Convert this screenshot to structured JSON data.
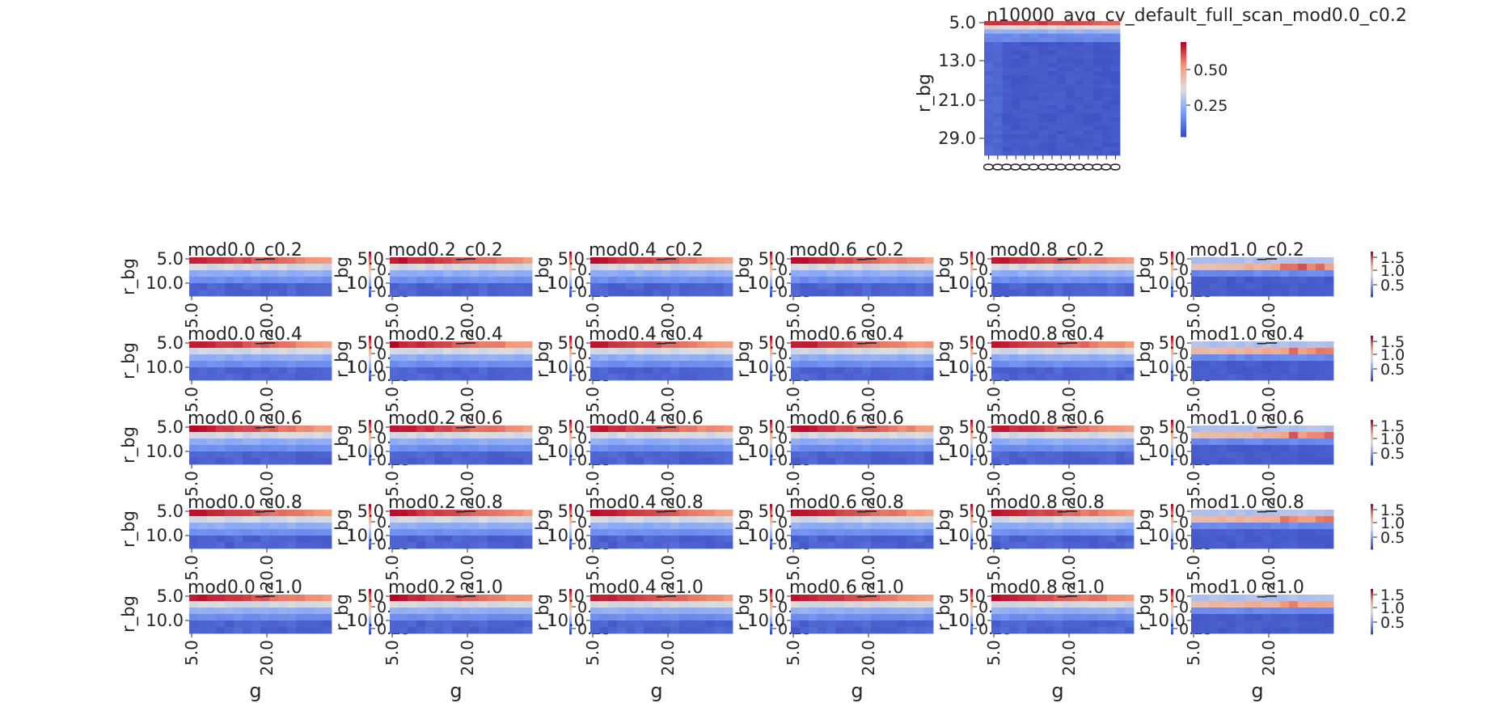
{
  "figure": {
    "colormap": "coolwarm",
    "background": "#ffffff",
    "text_color": "#262626"
  },
  "chart_data": [
    {
      "type": "heatmap",
      "title": "n10000_avg_cv_default_full_scan_mod0.0_c0.2",
      "xlabel": "",
      "ylabel": "r_bg",
      "y_ticklabels": [
        "5.0",
        "13.0",
        "21.0",
        "29.0"
      ],
      "x_ticklabels": [
        "0",
        "0",
        "0",
        "0",
        "0",
        "0",
        "0",
        "0",
        "0",
        "0",
        "0",
        "0",
        "0",
        "0",
        "0"
      ],
      "colorbar_ticklabels": [
        "0.50",
        "0.25"
      ],
      "value_range": [
        0.08,
        0.72
      ],
      "rows": 32,
      "cols": 15,
      "pattern": "top row hot (red), rapidly cooling to uniform blue below"
    },
    {
      "type": "heatmap_grid",
      "rows_c": [
        "c0.2",
        "c0.4",
        "c0.6",
        "c0.8",
        "c1.0"
      ],
      "cols_mod": [
        "mod0.0",
        "mod0.2",
        "mod0.4",
        "mod0.6",
        "mod0.8",
        "mod1.0"
      ],
      "titles": [
        [
          "mod0.0_c0.2",
          "mod0.2_c0.2",
          "mod0.4_c0.2",
          "mod0.6_c0.2",
          "mod0.8_c0.2",
          "mod1.0_c0.2"
        ],
        [
          "mod0.0_c0.4",
          "mod0.2_c0.4",
          "mod0.4_c0.4",
          "mod0.6_c0.4",
          "mod0.8_c0.4",
          "mod1.0_c0.4"
        ],
        [
          "mod0.0_c0.6",
          "mod0.2_c0.6",
          "mod0.4_c0.6",
          "mod0.6_c0.6",
          "mod0.8_c0.6",
          "mod1.0_c0.6"
        ],
        [
          "mod0.0_c0.8",
          "mod0.2_c0.8",
          "mod0.4_c0.8",
          "mod0.6_c0.8",
          "mod0.8_c0.8",
          "mod1.0_c0.8"
        ],
        [
          "mod0.0_c1.0",
          "mod0.2_c1.0",
          "mod0.4_c1.0",
          "mod0.6_c1.0",
          "mod0.8_c1.0",
          "mod1.0_c1.0"
        ]
      ],
      "xlabel": "g",
      "ylabel": "r_bg",
      "x_ticklabels": [
        "5.0",
        "20.0"
      ],
      "y_ticklabels": [
        "5.0",
        "10.0"
      ],
      "second_ylabel": "r_bg",
      "colorbar_ticklabels": [
        "0.50",
        "0.25"
      ],
      "colorbar_ticklabels_mod1": [
        "1.5",
        "1.0",
        "0.5"
      ],
      "value_range": [
        0.08,
        0.72
      ],
      "value_range_mod1": [
        0.3,
        1.7
      ],
      "cell_rows": 6,
      "cell_cols": 16,
      "pattern": "mod<1.0: red top row, cooling gradient downward; mod1.0: pale second row with red hotspots at right, blue elsewhere"
    }
  ]
}
